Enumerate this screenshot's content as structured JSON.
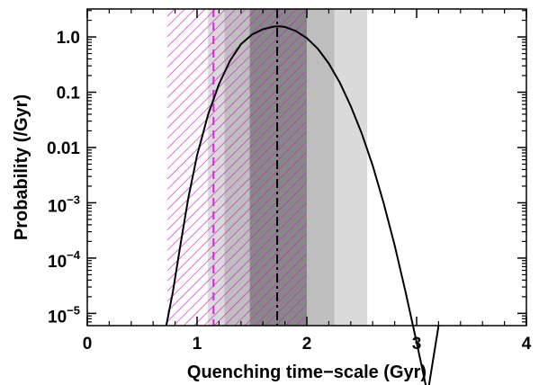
{
  "chart_data": {
    "type": "line",
    "title": "",
    "xlabel": "Quenching time−scale (Gyr)",
    "ylabel": "Probability (/Gyr)",
    "xlim": [
      0,
      4
    ],
    "ylim": [
      6e-06,
      3.2
    ],
    "yscale": "log",
    "grid": false,
    "xticks": [
      {
        "value": 0,
        "label": "0"
      },
      {
        "value": 1,
        "label": "1"
      },
      {
        "value": 2,
        "label": "2"
      },
      {
        "value": 3,
        "label": "3"
      },
      {
        "value": 4,
        "label": "4"
      }
    ],
    "yticks": [
      {
        "value": 1,
        "label": "1.0"
      },
      {
        "value": 0.1,
        "label": "0.1"
      },
      {
        "value": 0.01,
        "label": "0.01"
      },
      {
        "value": 0.001,
        "label": "10",
        "exp": "−3"
      },
      {
        "value": 0.0001,
        "label": "10",
        "exp": "−4"
      },
      {
        "value": 1e-05,
        "label": "10",
        "exp": "−5"
      }
    ],
    "series": [
      {
        "color": "#000000",
        "x": [
          0.72,
          0.78,
          0.85,
          0.92,
          1.0,
          1.1,
          1.2,
          1.3,
          1.4,
          1.5,
          1.6,
          1.7,
          1.75,
          1.8,
          1.9,
          2.0,
          2.1,
          2.2,
          2.3,
          2.4,
          2.5,
          2.6,
          2.7,
          2.8,
          2.9,
          3.0,
          3.1,
          3.2
        ],
        "y": [
          6e-06,
          2.5e-05,
          0.00018,
          0.0012,
          0.0072,
          0.039,
          0.14,
          0.37,
          0.74,
          1.1,
          1.38,
          1.54,
          1.56,
          1.52,
          1.28,
          0.95,
          0.61,
          0.33,
          0.15,
          0.056,
          0.018,
          0.0047,
          0.00098,
          0.00017,
          2.4e-05,
          3e-06,
          3.5e-07,
          6e-06
        ]
      }
    ],
    "bands": [
      {
        "range": [
          1.1,
          2.55
        ],
        "color": "#dadada"
      },
      {
        "range": [
          1.25,
          2.25
        ],
        "color": "#bebebe"
      },
      {
        "range": [
          1.48,
          2.0
        ],
        "color": "#888888"
      }
    ],
    "hatched_regions": [
      {
        "range": [
          0.73,
          1.2
        ],
        "color": "#cc22cc"
      },
      {
        "range": [
          1.2,
          1.5
        ],
        "color": "#cc22cc"
      },
      {
        "range": [
          1.5,
          1.99
        ],
        "color": "#cc22cc"
      }
    ],
    "vlines": [
      {
        "x": 1.15,
        "color": "#dd22dd",
        "style": "dashed"
      },
      {
        "x": 1.73,
        "color": "#000000",
        "style": "dashdot"
      }
    ]
  }
}
